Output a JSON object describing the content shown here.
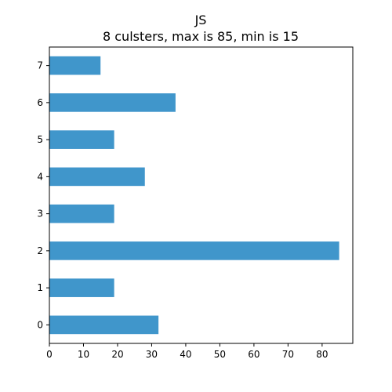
{
  "chart_data": {
    "type": "bar",
    "orientation": "horizontal",
    "title": "JS",
    "subtitle": "8 culsters, max is 85, min is 15",
    "categories": [
      "0",
      "1",
      "2",
      "3",
      "4",
      "5",
      "6",
      "7"
    ],
    "values": [
      32,
      19,
      85,
      19,
      28,
      19,
      37,
      15
    ],
    "xlim": [
      0,
      89
    ],
    "x_ticks": [
      "0",
      "10",
      "20",
      "30",
      "40",
      "50",
      "60",
      "70",
      "80"
    ],
    "xlabel": "",
    "ylabel": "",
    "grid": false,
    "bar_color": "#4096cb"
  }
}
